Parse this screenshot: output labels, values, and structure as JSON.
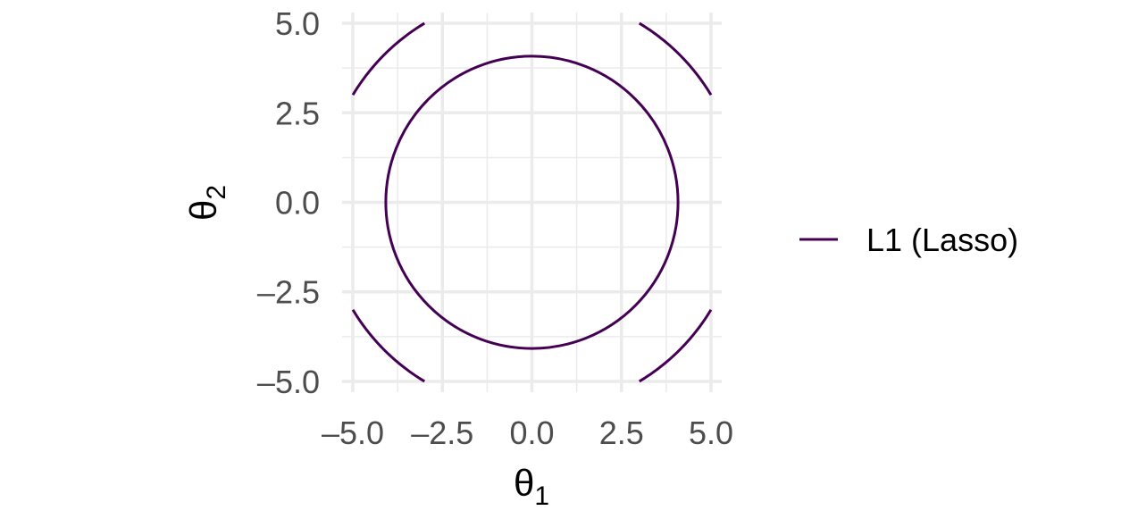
{
  "chart_data": {
    "type": "line",
    "title": "",
    "xlabel": {
      "main": "θ",
      "sub": "1"
    },
    "ylabel": {
      "main": "θ",
      "sub": "2"
    },
    "xlim": [
      -5.3,
      5.3
    ],
    "ylim": [
      -5.3,
      5.3
    ],
    "x_ticks": [
      -5.0,
      -2.5,
      0.0,
      2.5,
      5.0
    ],
    "y_ticks": [
      -5.0,
      -2.5,
      0.0,
      2.5,
      5.0
    ],
    "x_tick_labels": [
      "–5.0",
      "–2.5",
      "0.0",
      "2.5",
      "5.0"
    ],
    "y_tick_labels": [
      "–5.0",
      "–2.5",
      "0.0",
      "2.5",
      "5.0"
    ],
    "grid": true,
    "legend_position": "right",
    "series": [
      {
        "name": "L1 (Lasso)",
        "color": "#440154",
        "contours": [
          {
            "shape": "circle",
            "radius": 4.08
          },
          {
            "shape": "arc",
            "radius": 5.83,
            "from": [
              -5.0,
              3.0
            ],
            "to": [
              -3.0,
              5.0
            ]
          },
          {
            "shape": "arc",
            "radius": 5.83,
            "from": [
              3.0,
              5.0
            ],
            "to": [
              5.0,
              3.0
            ]
          },
          {
            "shape": "arc",
            "radius": 5.83,
            "from": [
              -5.0,
              -3.0
            ],
            "to": [
              -3.0,
              -5.0
            ]
          },
          {
            "shape": "arc",
            "radius": 5.83,
            "from": [
              3.0,
              -5.0
            ],
            "to": [
              5.0,
              -3.0
            ]
          }
        ]
      }
    ]
  }
}
